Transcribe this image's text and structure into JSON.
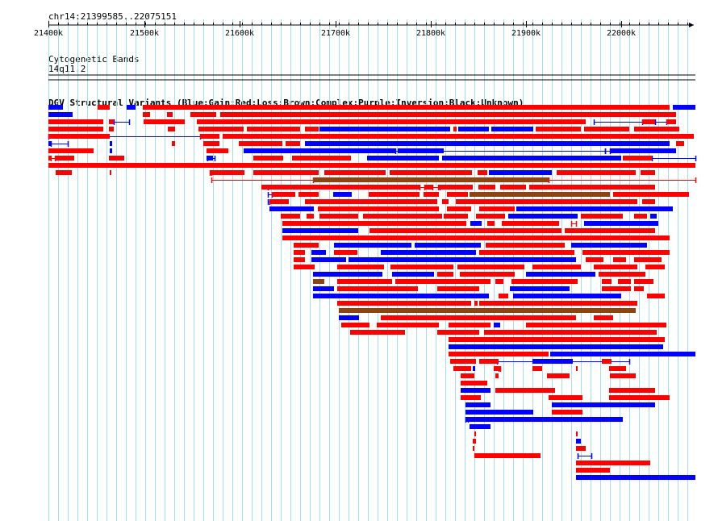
{
  "region": "chr14:21399585..22075151",
  "ruler": {
    "ticks": [
      "21400k",
      "21500k",
      "21600k",
      "21700k",
      "21800k",
      "21900k",
      "22000k"
    ]
  },
  "cytoband_track": {
    "title": "Cytogenetic Bands",
    "band": "14q11.2"
  },
  "dgv_track": {
    "title": "DGV Structural Variants (Blue:Gain;Red:Loss;Brown:Complex;Purple:Inversion;Black:Unknown)",
    "colors": {
      "gain": "#0000ff",
      "loss": "#ff0000",
      "complex": "#8b4513",
      "grid": "#a6dfe8"
    }
  }
}
